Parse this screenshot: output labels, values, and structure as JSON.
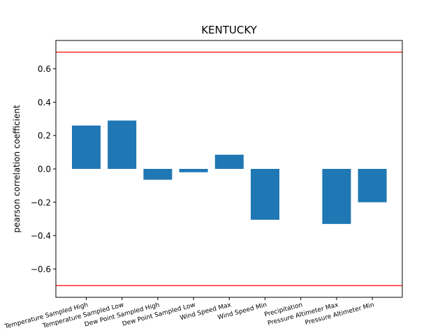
{
  "chart_data": {
    "type": "bar",
    "title": "KENTUCKY",
    "xlabel": "",
    "ylabel": "pearson correlation coefficient",
    "categories": [
      "Temperature Sampled High",
      "Temperature Sampled Low",
      "Dew Point Sampled High",
      "Dew Point Sampled Low",
      "Wind Speed Max",
      "Wind Speed Min",
      "Precipitation",
      "Pressure Altimeter Max",
      "Pressure Altimeter Min"
    ],
    "values": [
      0.26,
      0.29,
      -0.065,
      -0.02,
      0.085,
      -0.305,
      0.0,
      -0.33,
      -0.2
    ],
    "ylim": [
      -0.77,
      0.77
    ],
    "yticks": [
      -0.6,
      -0.4,
      -0.2,
      0.0,
      0.2,
      0.4,
      0.6
    ],
    "ytick_labels": [
      "−0.6",
      "−0.4",
      "−0.2",
      "0.0",
      "0.2",
      "0.4",
      "0.6"
    ],
    "reference_lines": [
      0.7,
      -0.7
    ],
    "bar_color": "#1f77b4",
    "reference_line_color": "#ff0000",
    "grid": false,
    "legend": "none"
  }
}
